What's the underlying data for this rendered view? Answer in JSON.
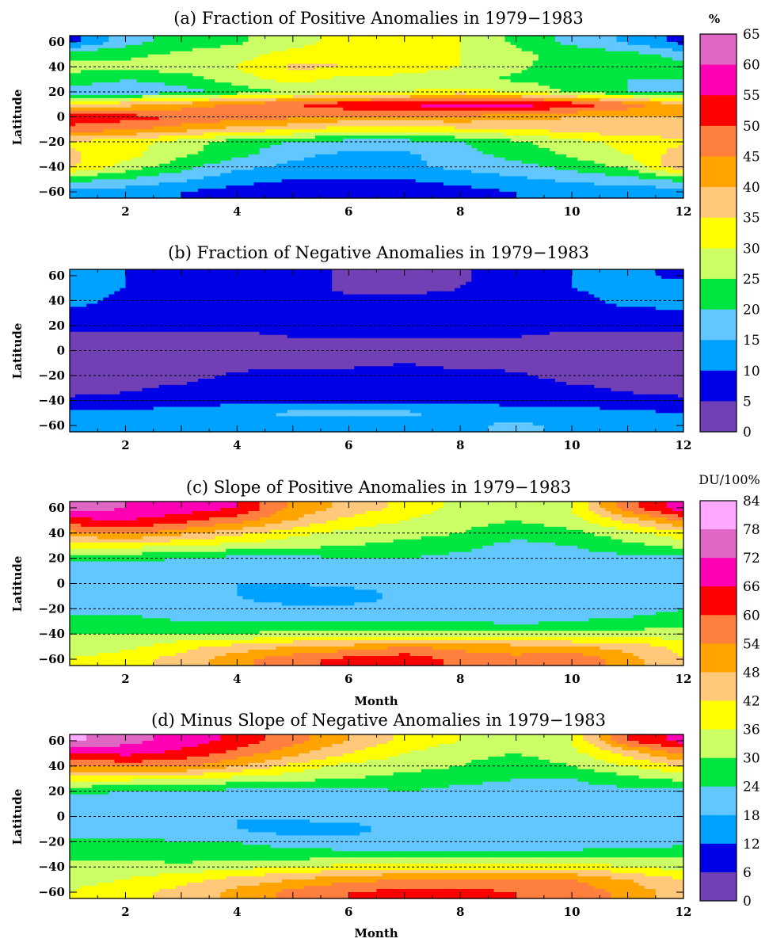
{
  "chart_data": [
    {
      "type": "heatmap",
      "title": "(a) Fraction of Positive Anomalies in 1979−1983",
      "xlabel": "",
      "ylabel": "Latitude",
      "x_ticks": [
        2,
        4,
        6,
        8,
        10,
        12
      ],
      "y_ticks": [
        60,
        40,
        20,
        0,
        -20,
        -40,
        -60
      ],
      "xlim": [
        1,
        12
      ],
      "ylim": [
        -65,
        65
      ],
      "grid_lines": [
        40,
        20,
        0,
        -20,
        -40
      ],
      "colorbar": "percent",
      "months": [
        1,
        2,
        3,
        4,
        5,
        6,
        7,
        8,
        9,
        10,
        11,
        12
      ],
      "latitudes": [
        60,
        50,
        40,
        30,
        20,
        10,
        0,
        -10,
        -20,
        -30,
        -40,
        -50,
        -60
      ],
      "values": [
        [
          8,
          18,
          22,
          24,
          28,
          32,
          34,
          30,
          24,
          18,
          14,
          8
        ],
        [
          24,
          24,
          26,
          28,
          32,
          34,
          32,
          30,
          26,
          24,
          22,
          18
        ],
        [
          26,
          26,
          28,
          30,
          36,
          35,
          33,
          30,
          26,
          22,
          22,
          22
        ],
        [
          24,
          20,
          22,
          28,
          32,
          28,
          28,
          26,
          24,
          22,
          20,
          20
        ],
        [
          16,
          16,
          18,
          22,
          26,
          28,
          30,
          32,
          30,
          24,
          20,
          18
        ],
        [
          36,
          38,
          42,
          46,
          50,
          54,
          56,
          58,
          58,
          54,
          48,
          40
        ],
        [
          54,
          52,
          50,
          48,
          46,
          44,
          44,
          44,
          42,
          40,
          40,
          40
        ],
        [
          48,
          46,
          42,
          38,
          36,
          32,
          32,
          34,
          34,
          38,
          38,
          38
        ],
        [
          34,
          32,
          28,
          22,
          20,
          18,
          18,
          20,
          24,
          28,
          32,
          34
        ],
        [
          36,
          32,
          26,
          22,
          16,
          14,
          14,
          18,
          22,
          26,
          30,
          38
        ],
        [
          36,
          28,
          22,
          16,
          14,
          14,
          14,
          16,
          18,
          22,
          26,
          40
        ],
        [
          22,
          20,
          16,
          12,
          10,
          10,
          10,
          12,
          14,
          16,
          18,
          22
        ],
        [
          12,
          12,
          10,
          8,
          6,
          6,
          6,
          8,
          10,
          12,
          12,
          12
        ]
      ]
    },
    {
      "type": "heatmap",
      "title": "(b) Fraction of Negative Anomalies in 1979−1983",
      "xlabel": "",
      "ylabel": "Latitude",
      "x_ticks": [
        2,
        4,
        6,
        8,
        10,
        12
      ],
      "y_ticks": [
        60,
        40,
        20,
        0,
        -20,
        -40,
        -60
      ],
      "xlim": [
        1,
        12
      ],
      "ylim": [
        -65,
        65
      ],
      "grid_lines": [
        40,
        20,
        0,
        -20,
        -40
      ],
      "colorbar": "percent",
      "months": [
        1,
        2,
        3,
        4,
        5,
        6,
        7,
        8,
        9,
        10,
        11,
        12
      ],
      "latitudes": [
        60,
        50,
        40,
        30,
        20,
        10,
        0,
        -10,
        -20,
        -30,
        -40,
        -50,
        -60
      ],
      "values": [
        [
          11,
          10,
          9,
          8,
          7,
          4,
          3,
          4,
          8,
          10,
          11,
          9
        ],
        [
          12,
          10,
          9,
          8,
          7,
          4,
          4,
          5,
          8,
          10,
          12,
          12
        ],
        [
          13,
          8,
          7,
          7,
          6,
          6,
          6,
          6,
          7,
          8,
          12,
          13
        ],
        [
          8,
          7,
          7,
          7,
          6,
          6,
          6,
          6,
          6,
          7,
          8,
          9
        ],
        [
          6,
          6,
          6,
          6,
          6,
          6,
          6,
          6,
          6,
          6,
          6,
          6
        ],
        [
          4,
          4,
          4,
          4,
          5,
          5,
          5,
          5,
          5,
          4,
          4,
          4
        ],
        [
          3,
          3,
          3,
          3,
          3,
          3,
          3,
          3,
          3,
          3,
          3,
          3
        ],
        [
          2,
          2,
          3,
          3,
          3,
          3,
          5,
          3,
          3,
          3,
          2,
          2
        ],
        [
          3,
          3,
          3,
          6,
          7,
          8,
          8,
          7,
          6,
          3,
          3,
          3
        ],
        [
          3,
          4,
          6,
          8,
          8,
          8,
          8,
          8,
          8,
          6,
          4,
          3
        ],
        [
          6,
          7,
          8,
          8,
          9,
          9,
          9,
          8,
          8,
          8,
          7,
          6
        ],
        [
          11,
          11,
          12,
          14,
          16,
          16,
          16,
          14,
          13,
          12,
          11,
          10
        ],
        [
          12,
          12,
          13,
          13,
          12,
          12,
          11,
          14,
          16,
          14,
          12,
          12
        ]
      ]
    },
    {
      "type": "heatmap",
      "title": "(c) Slope of Positive Anomalies in 1979−1983",
      "xlabel": "Month",
      "ylabel": "Latitude",
      "x_ticks": [
        2,
        4,
        6,
        8,
        10,
        12
      ],
      "y_ticks": [
        60,
        40,
        20,
        0,
        -20,
        -40,
        -60
      ],
      "xlim": [
        1,
        12
      ],
      "ylim": [
        -65,
        65
      ],
      "grid_lines": [
        40,
        20,
        0,
        -20,
        -40
      ],
      "colorbar": "slope",
      "months": [
        1,
        2,
        3,
        4,
        5,
        6,
        7,
        8,
        9,
        10,
        11,
        12
      ],
      "latitudes": [
        60,
        50,
        40,
        30,
        20,
        10,
        0,
        -10,
        -20,
        -30,
        -40,
        -50,
        -60
      ],
      "values": [
        [
          76,
          72,
          70,
          66,
          52,
          46,
          40,
          34,
          32,
          36,
          58,
          70
        ],
        [
          64,
          66,
          62,
          56,
          48,
          40,
          36,
          32,
          30,
          34,
          44,
          56
        ],
        [
          52,
          56,
          50,
          44,
          38,
          34,
          32,
          30,
          26,
          28,
          34,
          40
        ],
        [
          38,
          38,
          36,
          34,
          32,
          30,
          28,
          26,
          22,
          24,
          28,
          32
        ],
        [
          26,
          26,
          24,
          22,
          22,
          24,
          24,
          22,
          22,
          22,
          22,
          22
        ],
        [
          20,
          20,
          20,
          20,
          20,
          20,
          20,
          20,
          20,
          20,
          20,
          20
        ],
        [
          20,
          20,
          20,
          18,
          18,
          20,
          20,
          20,
          20,
          20,
          20,
          20
        ],
        [
          20,
          20,
          20,
          18,
          14,
          14,
          20,
          20,
          20,
          20,
          20,
          20
        ],
        [
          22,
          22,
          20,
          20,
          20,
          20,
          20,
          20,
          20,
          20,
          20,
          24
        ],
        [
          26,
          26,
          24,
          24,
          24,
          24,
          24,
          24,
          22,
          24,
          26,
          28
        ],
        [
          30,
          30,
          30,
          30,
          32,
          32,
          32,
          32,
          32,
          32,
          32,
          32
        ],
        [
          32,
          34,
          40,
          44,
          48,
          50,
          54,
          52,
          50,
          48,
          46,
          40
        ],
        [
          36,
          40,
          44,
          52,
          58,
          62,
          64,
          58,
          56,
          60,
          50,
          42
        ]
      ]
    },
    {
      "type": "heatmap",
      "title": "(d) Minus Slope of Negative Anomalies in 1979−1983",
      "xlabel": "Month",
      "ylabel": "Latitude",
      "x_ticks": [
        2,
        4,
        6,
        8,
        10,
        12
      ],
      "y_ticks": [
        60,
        40,
        20,
        0,
        -20,
        -40,
        -60
      ],
      "xlim": [
        1,
        12
      ],
      "ylim": [
        -65,
        65
      ],
      "grid_lines": [
        40,
        20,
        0,
        -20,
        -40
      ],
      "colorbar": "slope",
      "months": [
        1,
        2,
        3,
        4,
        5,
        6,
        7,
        8,
        9,
        10,
        11,
        12
      ],
      "latitudes": [
        60,
        50,
        40,
        30,
        20,
        10,
        0,
        -10,
        -20,
        -30,
        -40,
        -50,
        -60
      ],
      "values": [
        [
          80,
          74,
          70,
          64,
          56,
          48,
          40,
          36,
          34,
          36,
          60,
          68
        ],
        [
          64,
          68,
          64,
          58,
          50,
          42,
          36,
          32,
          30,
          34,
          44,
          56
        ],
        [
          54,
          56,
          56,
          48,
          40,
          34,
          32,
          30,
          26,
          30,
          36,
          42
        ],
        [
          38,
          38,
          36,
          34,
          32,
          30,
          28,
          26,
          24,
          24,
          28,
          32
        ],
        [
          26,
          24,
          24,
          22,
          22,
          22,
          24,
          22,
          22,
          22,
          22,
          22
        ],
        [
          20,
          20,
          20,
          20,
          20,
          20,
          20,
          20,
          20,
          20,
          20,
          20
        ],
        [
          20,
          20,
          20,
          18,
          20,
          20,
          20,
          20,
          20,
          20,
          20,
          20
        ],
        [
          20,
          20,
          20,
          18,
          14,
          16,
          20,
          20,
          20,
          20,
          20,
          20
        ],
        [
          26,
          26,
          24,
          24,
          22,
          20,
          20,
          20,
          20,
          20,
          20,
          22
        ],
        [
          28,
          28,
          26,
          26,
          26,
          26,
          26,
          26,
          26,
          26,
          28,
          28
        ],
        [
          32,
          32,
          32,
          34,
          36,
          38,
          40,
          40,
          40,
          40,
          36,
          34
        ],
        [
          34,
          36,
          40,
          44,
          48,
          52,
          54,
          54,
          54,
          54,
          48,
          42
        ],
        [
          36,
          40,
          44,
          50,
          56,
          60,
          62,
          62,
          60,
          58,
          52,
          44
        ]
      ]
    }
  ],
  "colorbars": {
    "percent": {
      "unit": "%",
      "labels": [
        "65",
        "60",
        "55",
        "50",
        "45",
        "40",
        "35",
        "30",
        "25",
        "20",
        "15",
        "10",
        "5",
        "0"
      ],
      "colors": [
        "#e066c4",
        "#ff00b4",
        "#ff0000",
        "#ff7f3f",
        "#ffa400",
        "#ffc87a",
        "#ffff00",
        "#ccff66",
        "#00e640",
        "#63c7ff",
        "#00a2ff",
        "#0000e6",
        "#7040b4"
      ]
    },
    "slope": {
      "unit": "DU/100%",
      "labels": [
        "84",
        "78",
        "72",
        "66",
        "60",
        "54",
        "48",
        "42",
        "36",
        "30",
        "24",
        "18",
        "12",
        "6",
        "0"
      ],
      "colors": [
        "#ffa8ff",
        "#e066c4",
        "#ff00b4",
        "#ff0000",
        "#ff7f3f",
        "#ffa400",
        "#ffc87a",
        "#ffff00",
        "#ccff66",
        "#00e640",
        "#63c7ff",
        "#00a2ff",
        "#0000e6",
        "#7040b4"
      ]
    }
  }
}
